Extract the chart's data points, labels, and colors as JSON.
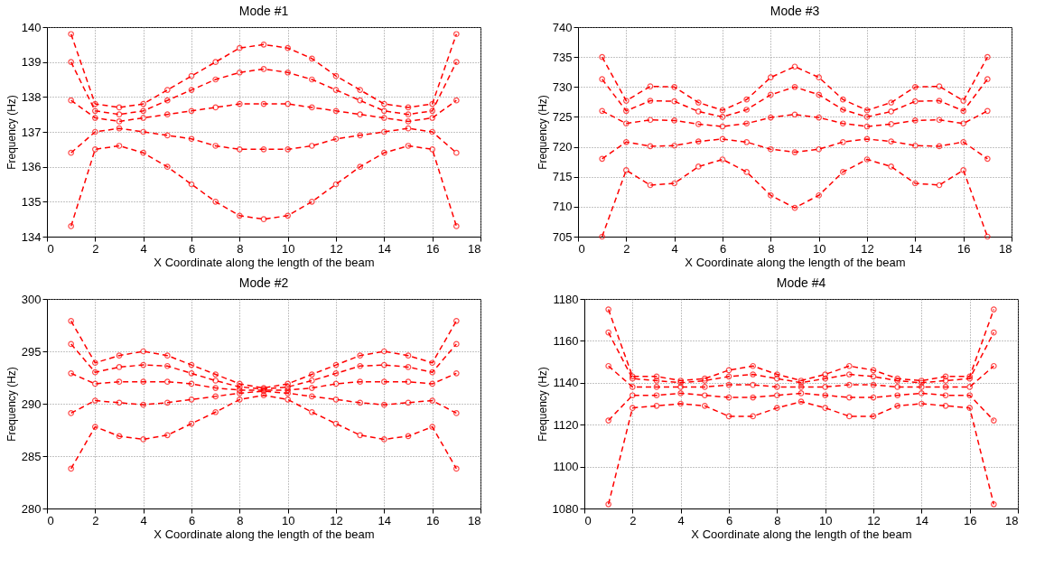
{
  "chart_data": [
    {
      "type": "line",
      "title": "Mode #1",
      "xlabel": "X Coordinate along the length of the beam",
      "ylabel": "Frequency (Hz)",
      "x": [
        1,
        2,
        3,
        4,
        5,
        6,
        7,
        8,
        9,
        10,
        11,
        12,
        13,
        14,
        15,
        16,
        17
      ],
      "xlim": [
        0,
        18
      ],
      "xticks": [
        0,
        2,
        4,
        6,
        8,
        10,
        12,
        14,
        16,
        18
      ],
      "ylim": [
        134,
        140
      ],
      "yticks": [
        134,
        135,
        136,
        137,
        138,
        139,
        140
      ],
      "grid": true,
      "marker": "circle",
      "line_style": "dashed",
      "series": [
        {
          "color": "#ff0000",
          "values": [
            139.8,
            137.8,
            137.7,
            137.8,
            138.2,
            138.6,
            139.0,
            139.4,
            139.5,
            139.4,
            139.1,
            138.6,
            138.2,
            137.8,
            137.7,
            137.8,
            139.8
          ]
        },
        {
          "color": "#ff0000",
          "values": [
            139.0,
            137.6,
            137.5,
            137.6,
            137.9,
            138.2,
            138.5,
            138.7,
            138.8,
            138.7,
            138.5,
            138.2,
            137.9,
            137.6,
            137.5,
            137.6,
            139.0
          ]
        },
        {
          "color": "#ff0000",
          "values": [
            137.9,
            137.4,
            137.3,
            137.4,
            137.5,
            137.6,
            137.7,
            137.8,
            137.8,
            137.8,
            137.7,
            137.6,
            137.5,
            137.4,
            137.3,
            137.4,
            137.9
          ]
        },
        {
          "color": "#ff0000",
          "values": [
            136.4,
            137.0,
            137.1,
            137.0,
            136.9,
            136.8,
            136.6,
            136.5,
            136.5,
            136.5,
            136.6,
            136.8,
            136.9,
            137.0,
            137.1,
            137.0,
            136.4
          ]
        },
        {
          "color": "#ff0000",
          "values": [
            134.3,
            136.5,
            136.6,
            136.4,
            136.0,
            135.5,
            135.0,
            134.6,
            134.5,
            134.6,
            135.0,
            135.5,
            136.0,
            136.4,
            136.6,
            136.5,
            134.3
          ]
        }
      ]
    },
    {
      "type": "line",
      "title": "Mode #3",
      "xlabel": "X Coordinate along the length of the beam",
      "ylabel": "Frequency (Hz)",
      "x": [
        1,
        2,
        3,
        4,
        5,
        6,
        7,
        8,
        9,
        10,
        11,
        12,
        13,
        14,
        15,
        16,
        17
      ],
      "xlim": [
        0,
        18
      ],
      "xticks": [
        0,
        2,
        4,
        6,
        8,
        10,
        12,
        14,
        16,
        18
      ],
      "ylim": [
        705,
        740
      ],
      "yticks": [
        705,
        710,
        715,
        720,
        725,
        730,
        735,
        740
      ],
      "grid": true,
      "marker": "circle",
      "line_style": "dashed",
      "series": [
        {
          "color": "#ff0000",
          "values": [
            735,
            727.7,
            730.1,
            730,
            727.4,
            726.1,
            727.9,
            731.6,
            733.4,
            731.6,
            727.9,
            726.1,
            727.4,
            730,
            730.1,
            727.7,
            735
          ]
        },
        {
          "color": "#ff0000",
          "values": [
            731.3,
            726,
            727.7,
            727.6,
            725.9,
            725,
            726.2,
            728.7,
            730,
            728.7,
            726.2,
            725,
            725.9,
            727.6,
            727.7,
            726,
            731.3
          ]
        },
        {
          "color": "#ff0000",
          "values": [
            726,
            723.9,
            724.5,
            724.4,
            723.8,
            723.4,
            723.9,
            724.9,
            725.4,
            724.9,
            723.9,
            723.4,
            723.8,
            724.4,
            724.5,
            723.9,
            726
          ]
        },
        {
          "color": "#ff0000",
          "values": [
            718,
            720.8,
            720.1,
            720.2,
            720.9,
            721.3,
            720.8,
            719.6,
            719.1,
            719.6,
            720.8,
            721.3,
            720.9,
            720.2,
            720.1,
            720.8,
            718
          ]
        },
        {
          "color": "#ff0000",
          "values": [
            705,
            716.1,
            713.6,
            713.9,
            716.7,
            717.9,
            715.8,
            711.9,
            709.8,
            711.9,
            715.8,
            717.9,
            716.7,
            713.9,
            713.6,
            716.1,
            705
          ]
        }
      ]
    },
    {
      "type": "line",
      "title": "Mode #2",
      "xlabel": "X Coordinate along the length of the beam",
      "ylabel": "Frequency (Hz)",
      "x": [
        1,
        2,
        3,
        4,
        5,
        6,
        7,
        8,
        9,
        10,
        11,
        12,
        13,
        14,
        15,
        16,
        17
      ],
      "xlim": [
        0,
        18
      ],
      "xticks": [
        0,
        2,
        4,
        6,
        8,
        10,
        12,
        14,
        16,
        18
      ],
      "ylim": [
        280,
        300
      ],
      "yticks": [
        280,
        285,
        290,
        295,
        300
      ],
      "grid": true,
      "marker": "circle",
      "line_style": "dashed",
      "series": [
        {
          "color": "#ff0000",
          "values": [
            297.9,
            293.9,
            294.6,
            295.0,
            294.6,
            293.7,
            292.8,
            291.9,
            291.5,
            291.9,
            292.8,
            293.7,
            294.6,
            295.0,
            294.6,
            293.9,
            297.9
          ]
        },
        {
          "color": "#ff0000",
          "values": [
            295.7,
            293.0,
            293.5,
            293.7,
            293.6,
            292.9,
            292.2,
            291.6,
            291.4,
            291.6,
            292.2,
            292.9,
            293.6,
            293.7,
            293.5,
            293.0,
            295.7
          ]
        },
        {
          "color": "#ff0000",
          "values": [
            292.9,
            291.9,
            292.1,
            292.1,
            292.1,
            291.9,
            291.5,
            291.3,
            291.3,
            291.3,
            291.5,
            291.9,
            292.1,
            292.1,
            292.1,
            291.9,
            292.9
          ]
        },
        {
          "color": "#ff0000",
          "values": [
            289.1,
            290.3,
            290.1,
            289.9,
            290.1,
            290.4,
            290.7,
            291.0,
            291.2,
            291.0,
            290.7,
            290.4,
            290.1,
            289.9,
            290.1,
            290.3,
            289.1
          ]
        },
        {
          "color": "#ff0000",
          "values": [
            283.8,
            287.8,
            286.9,
            286.6,
            287.0,
            288.1,
            289.2,
            290.4,
            290.8,
            290.4,
            289.2,
            288.1,
            287.0,
            286.6,
            286.9,
            287.8,
            283.8
          ]
        }
      ]
    },
    {
      "type": "line",
      "title": "Mode #4",
      "xlabel": "X Coordinate along the length of the beam",
      "ylabel": "Frequency (Hz)",
      "x": [
        1,
        2,
        3,
        4,
        5,
        6,
        7,
        8,
        9,
        10,
        11,
        12,
        13,
        14,
        15,
        16,
        17
      ],
      "xlim": [
        0,
        18
      ],
      "xticks": [
        0,
        2,
        4,
        6,
        8,
        10,
        12,
        14,
        16,
        18
      ],
      "ylim": [
        1080,
        1180
      ],
      "yticks": [
        1080,
        1100,
        1120,
        1140,
        1160,
        1180
      ],
      "grid": true,
      "marker": "circle",
      "line_style": "dashed",
      "series": [
        {
          "color": "#ff0000",
          "values": [
            1175,
            1143,
            1143,
            1141,
            1142,
            1146,
            1148,
            1144,
            1141,
            1144,
            1148,
            1146,
            1142,
            1141,
            1143,
            1143,
            1175
          ]
        },
        {
          "color": "#ff0000",
          "values": [
            1164,
            1142,
            1141,
            1140,
            1141,
            1143,
            1144,
            1142,
            1140,
            1142,
            1144,
            1143,
            1141,
            1140,
            1141,
            1142,
            1164
          ]
        },
        {
          "color": "#ff0000",
          "values": [
            1148,
            1138,
            1138,
            1138,
            1138,
            1139,
            1139,
            1138,
            1138,
            1138,
            1139,
            1139,
            1138,
            1138,
            1138,
            1138,
            1148
          ]
        },
        {
          "color": "#ff0000",
          "values": [
            1122,
            1134,
            1134,
            1135,
            1134,
            1133,
            1133,
            1134,
            1135,
            1134,
            1133,
            1133,
            1134,
            1135,
            1134,
            1134,
            1122
          ]
        },
        {
          "color": "#ff0000",
          "values": [
            1082,
            1128,
            1129,
            1130,
            1129,
            1124,
            1124,
            1128,
            1131,
            1128,
            1124,
            1124,
            1129,
            1130,
            1129,
            1128,
            1082
          ]
        }
      ]
    }
  ]
}
